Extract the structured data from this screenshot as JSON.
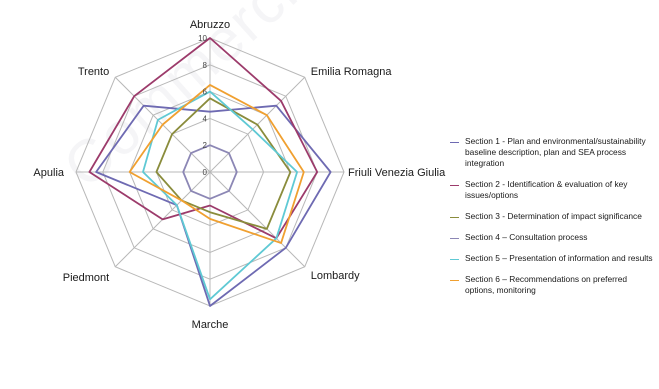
{
  "chart_data": {
    "type": "radar",
    "axes": [
      "Abruzzo",
      "Emilia Romagna",
      "Friuli Venezia Giulia",
      "Lombardy",
      "Marche",
      "Piedmont",
      "Apulia",
      "Trento"
    ],
    "rlim": [
      0,
      10
    ],
    "ticks": [
      "0",
      "2",
      "4",
      "6",
      "8",
      "10"
    ],
    "grid": true,
    "legend_position": "right",
    "series": [
      {
        "name": "Section 1 - Plan and environmental/sustainability baseline description, plan and SEA process integration",
        "color": "#6e6ab2",
        "values": [
          4.5,
          7,
          9,
          8,
          10,
          3.5,
          8.5,
          7
        ]
      },
      {
        "name": "Section 2 - Identification & evaluation of key issues/options",
        "color": "#9c3b6b",
        "values": [
          10,
          7.5,
          8,
          7,
          2.5,
          5,
          9,
          8
        ]
      },
      {
        "name": "Section 3 - Determination of impact significance",
        "color": "#8a8c3c",
        "values": [
          5.5,
          5,
          6,
          6,
          3,
          3,
          4,
          4
        ]
      },
      {
        "name": "Section 4 – Consultation process",
        "color": "#8c87b5",
        "values": [
          2,
          2,
          2,
          2,
          2,
          2,
          2,
          2
        ]
      },
      {
        "name": "Section 5 – Presentation of information and results",
        "color": "#5fc9d4",
        "values": [
          6,
          4.5,
          6.5,
          7,
          9.5,
          3.5,
          5,
          5.5
        ]
      },
      {
        "name": "Section 6 – Recommendations on preferred options, monitoring",
        "color": "#f0a030",
        "values": [
          6.5,
          6,
          7,
          7.5,
          3.5,
          3,
          6,
          5
        ]
      }
    ]
  },
  "watermark": "Commercial use only"
}
